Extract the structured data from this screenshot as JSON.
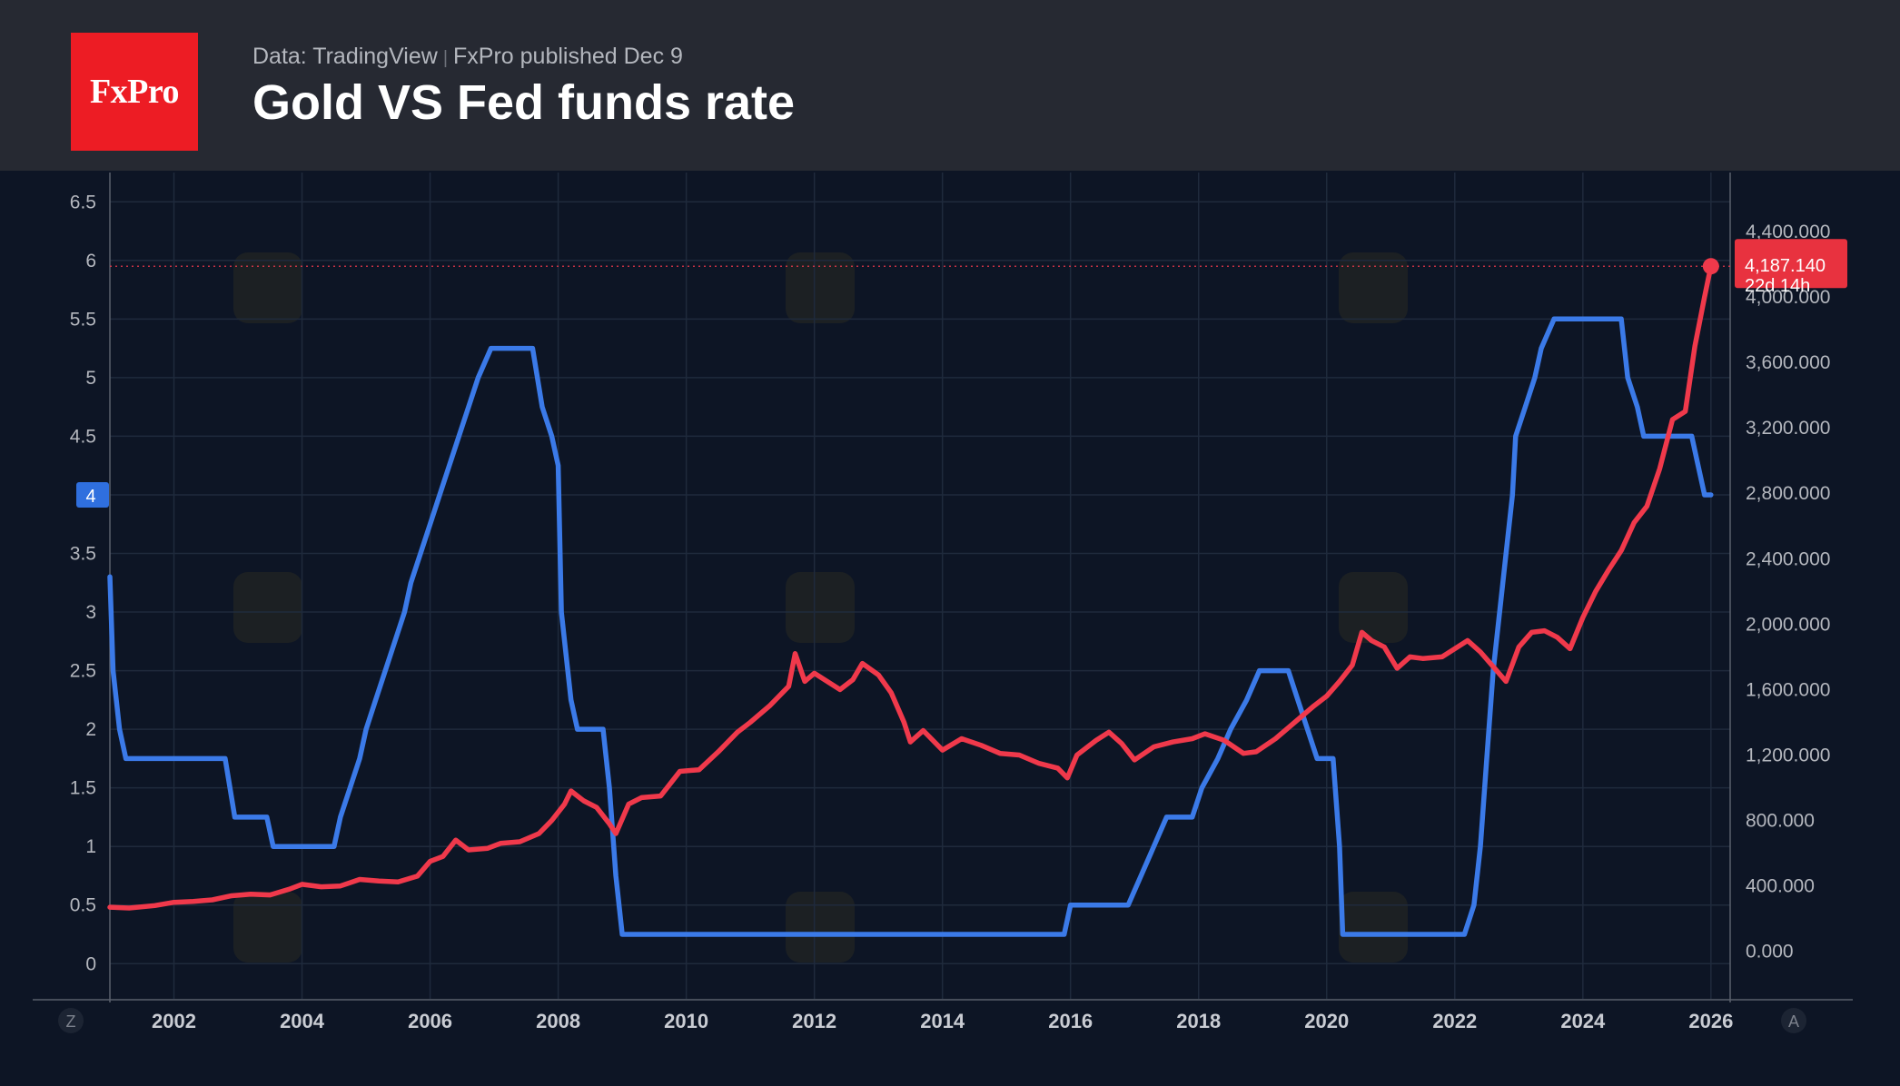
{
  "header": {
    "logo_text": "FxPro",
    "data_source": "Data: TradingView",
    "published": "FxPro published Dec 9",
    "title": "Gold VS Fed funds rate"
  },
  "colors": {
    "background": "#0d1525",
    "header_bg": "#262932",
    "logo_red": "#ed1c24",
    "fed_series": "#3b7ae8",
    "gold_series": "#f0394b",
    "grid": "#1f2a3c"
  },
  "corner_buttons": {
    "left": "Z",
    "right": "A"
  },
  "chart_data": {
    "type": "line",
    "xlabel": "",
    "x_ticks": [
      "2002",
      "2004",
      "2006",
      "2008",
      "2010",
      "2012",
      "2014",
      "2016",
      "2018",
      "2020",
      "2022",
      "2024",
      "2026"
    ],
    "xlim": [
      2001.0,
      2026.3
    ],
    "left_axis": {
      "ticks": [
        "0",
        "0.5",
        "1",
        "1.5",
        "2",
        "2.5",
        "3",
        "3.5",
        "4",
        "4.5",
        "5",
        "5.5",
        "6",
        "6.5"
      ],
      "ylim": [
        -0.3,
        6.75
      ],
      "current_label": "4"
    },
    "right_axis": {
      "ticks": [
        "0.000",
        "400.000",
        "800.000",
        "1,200.000",
        "1,600.000",
        "2,000.000",
        "2,400.000",
        "2,800.000",
        "3,200.000",
        "3,600.000",
        "4,000.000",
        "4,400.000"
      ],
      "ylim": [
        -290,
        4760
      ],
      "current_label": "4,187.140",
      "countdown": "22d 14h",
      "current_value": 4187.14
    },
    "series": [
      {
        "name": "",
        "axis": "left",
        "color": "#3b7ae8",
        "points": [
          [
            2001.0,
            3.3
          ],
          [
            2001.05,
            2.5
          ],
          [
            2001.15,
            2.0
          ],
          [
            2001.25,
            1.75
          ],
          [
            2002.1,
            1.75
          ],
          [
            2002.15,
            1.75
          ],
          [
            2002.8,
            1.75
          ],
          [
            2002.95,
            1.25
          ],
          [
            2003.45,
            1.25
          ],
          [
            2003.55,
            1.0
          ],
          [
            2004.5,
            1.0
          ],
          [
            2004.6,
            1.25
          ],
          [
            2004.75,
            1.5
          ],
          [
            2004.9,
            1.75
          ],
          [
            2005.0,
            2.0
          ],
          [
            2005.15,
            2.25
          ],
          [
            2005.3,
            2.5
          ],
          [
            2005.45,
            2.75
          ],
          [
            2005.6,
            3.0
          ],
          [
            2005.7,
            3.25
          ],
          [
            2005.85,
            3.5
          ],
          [
            2006.0,
            3.75
          ],
          [
            2006.15,
            4.0
          ],
          [
            2006.3,
            4.25
          ],
          [
            2006.45,
            4.5
          ],
          [
            2006.6,
            4.75
          ],
          [
            2006.75,
            5.0
          ],
          [
            2006.95,
            5.25
          ],
          [
            2007.6,
            5.25
          ],
          [
            2007.75,
            4.75
          ],
          [
            2007.9,
            4.5
          ],
          [
            2008.0,
            4.25
          ],
          [
            2008.05,
            3.0
          ],
          [
            2008.2,
            2.25
          ],
          [
            2008.3,
            2.0
          ],
          [
            2008.7,
            2.0
          ],
          [
            2008.8,
            1.5
          ],
          [
            2008.9,
            0.75
          ],
          [
            2009.0,
            0.25
          ],
          [
            2015.9,
            0.25
          ],
          [
            2016.0,
            0.5
          ],
          [
            2016.9,
            0.5
          ],
          [
            2017.1,
            0.75
          ],
          [
            2017.3,
            1.0
          ],
          [
            2017.5,
            1.25
          ],
          [
            2017.9,
            1.25
          ],
          [
            2018.05,
            1.5
          ],
          [
            2018.3,
            1.75
          ],
          [
            2018.5,
            2.0
          ],
          [
            2018.75,
            2.25
          ],
          [
            2018.95,
            2.5
          ],
          [
            2019.4,
            2.5
          ],
          [
            2019.55,
            2.25
          ],
          [
            2019.7,
            2.0
          ],
          [
            2019.85,
            1.75
          ],
          [
            2020.1,
            1.75
          ],
          [
            2020.2,
            1.0
          ],
          [
            2020.25,
            0.25
          ],
          [
            2022.15,
            0.25
          ],
          [
            2022.3,
            0.5
          ],
          [
            2022.4,
            1.0
          ],
          [
            2022.5,
            1.75
          ],
          [
            2022.6,
            2.5
          ],
          [
            2022.75,
            3.25
          ],
          [
            2022.9,
            4.0
          ],
          [
            2022.95,
            4.5
          ],
          [
            2023.1,
            4.75
          ],
          [
            2023.25,
            5.0
          ],
          [
            2023.35,
            5.25
          ],
          [
            2023.55,
            5.5
          ],
          [
            2024.6,
            5.5
          ],
          [
            2024.7,
            5.0
          ],
          [
            2024.85,
            4.75
          ],
          [
            2024.95,
            4.5
          ],
          [
            2025.7,
            4.5
          ],
          [
            2025.8,
            4.25
          ],
          [
            2025.9,
            4.0
          ],
          [
            2026.0,
            4.0
          ]
        ]
      },
      {
        "name": "",
        "axis": "right",
        "color": "#f0394b",
        "points": [
          [
            2001.0,
            270
          ],
          [
            2001.3,
            265
          ],
          [
            2001.7,
            280
          ],
          [
            2002.0,
            300
          ],
          [
            2002.3,
            305
          ],
          [
            2002.6,
            315
          ],
          [
            2002.9,
            340
          ],
          [
            2003.2,
            350
          ],
          [
            2003.5,
            345
          ],
          [
            2003.8,
            380
          ],
          [
            2004.0,
            410
          ],
          [
            2004.3,
            395
          ],
          [
            2004.6,
            400
          ],
          [
            2004.9,
            440
          ],
          [
            2005.2,
            430
          ],
          [
            2005.5,
            425
          ],
          [
            2005.8,
            460
          ],
          [
            2006.0,
            550
          ],
          [
            2006.2,
            580
          ],
          [
            2006.4,
            680
          ],
          [
            2006.6,
            620
          ],
          [
            2006.9,
            630
          ],
          [
            2007.1,
            660
          ],
          [
            2007.4,
            670
          ],
          [
            2007.7,
            720
          ],
          [
            2007.9,
            800
          ],
          [
            2008.1,
            900
          ],
          [
            2008.2,
            980
          ],
          [
            2008.4,
            920
          ],
          [
            2008.6,
            880
          ],
          [
            2008.8,
            780
          ],
          [
            2008.9,
            720
          ],
          [
            2009.1,
            900
          ],
          [
            2009.3,
            940
          ],
          [
            2009.6,
            950
          ],
          [
            2009.9,
            1100
          ],
          [
            2010.2,
            1110
          ],
          [
            2010.5,
            1220
          ],
          [
            2010.8,
            1340
          ],
          [
            2011.0,
            1400
          ],
          [
            2011.3,
            1500
          ],
          [
            2011.6,
            1620
          ],
          [
            2011.7,
            1820
          ],
          [
            2011.85,
            1650
          ],
          [
            2012.0,
            1700
          ],
          [
            2012.2,
            1650
          ],
          [
            2012.4,
            1600
          ],
          [
            2012.6,
            1660
          ],
          [
            2012.75,
            1760
          ],
          [
            2013.0,
            1690
          ],
          [
            2013.2,
            1580
          ],
          [
            2013.4,
            1400
          ],
          [
            2013.5,
            1280
          ],
          [
            2013.7,
            1350
          ],
          [
            2014.0,
            1230
          ],
          [
            2014.3,
            1300
          ],
          [
            2014.6,
            1260
          ],
          [
            2014.9,
            1210
          ],
          [
            2015.2,
            1200
          ],
          [
            2015.5,
            1150
          ],
          [
            2015.8,
            1120
          ],
          [
            2015.95,
            1060
          ],
          [
            2016.1,
            1200
          ],
          [
            2016.4,
            1290
          ],
          [
            2016.6,
            1340
          ],
          [
            2016.8,
            1270
          ],
          [
            2017.0,
            1170
          ],
          [
            2017.3,
            1250
          ],
          [
            2017.6,
            1280
          ],
          [
            2017.9,
            1300
          ],
          [
            2018.1,
            1330
          ],
          [
            2018.4,
            1290
          ],
          [
            2018.7,
            1210
          ],
          [
            2018.9,
            1220
          ],
          [
            2019.2,
            1300
          ],
          [
            2019.5,
            1400
          ],
          [
            2019.8,
            1500
          ],
          [
            2020.0,
            1560
          ],
          [
            2020.2,
            1650
          ],
          [
            2020.4,
            1750
          ],
          [
            2020.55,
            1950
          ],
          [
            2020.7,
            1900
          ],
          [
            2020.9,
            1860
          ],
          [
            2021.1,
            1730
          ],
          [
            2021.3,
            1800
          ],
          [
            2021.5,
            1790
          ],
          [
            2021.8,
            1800
          ],
          [
            2022.0,
            1850
          ],
          [
            2022.2,
            1900
          ],
          [
            2022.4,
            1830
          ],
          [
            2022.6,
            1740
          ],
          [
            2022.8,
            1650
          ],
          [
            2023.0,
            1860
          ],
          [
            2023.2,
            1950
          ],
          [
            2023.4,
            1960
          ],
          [
            2023.6,
            1920
          ],
          [
            2023.8,
            1850
          ],
          [
            2024.0,
            2040
          ],
          [
            2024.2,
            2200
          ],
          [
            2024.4,
            2330
          ],
          [
            2024.6,
            2450
          ],
          [
            2024.8,
            2620
          ],
          [
            2025.0,
            2720
          ],
          [
            2025.2,
            2950
          ],
          [
            2025.4,
            3250
          ],
          [
            2025.6,
            3300
          ],
          [
            2025.75,
            3700
          ],
          [
            2025.9,
            4000
          ],
          [
            2026.0,
            4187.14
          ]
        ]
      }
    ]
  }
}
